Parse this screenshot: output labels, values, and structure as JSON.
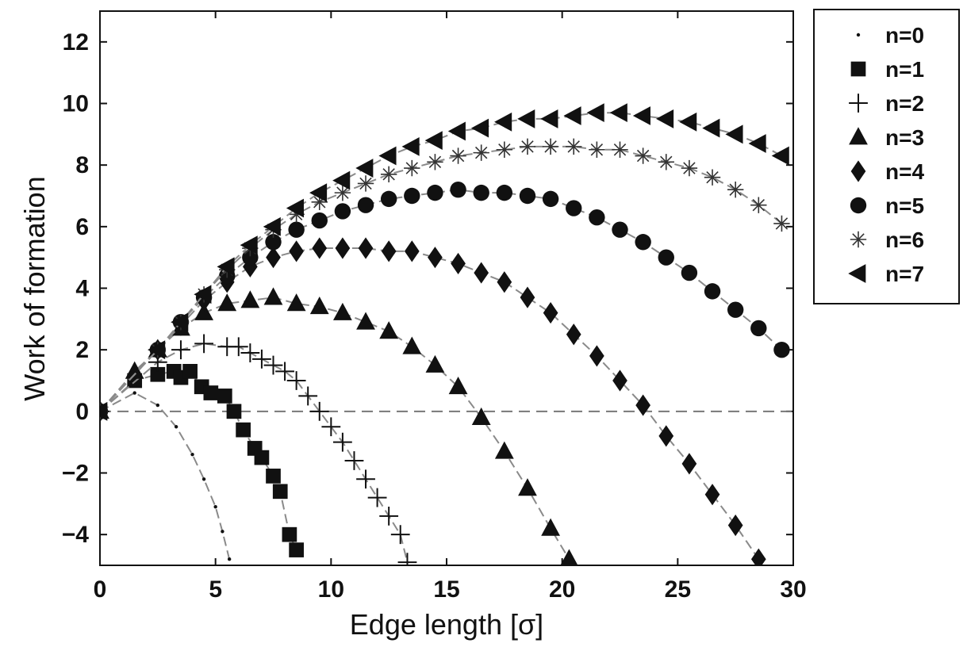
{
  "chart_data": {
    "type": "scatter",
    "title": "",
    "xlabel": "Edge length [σ]",
    "ylabel": "Work of formation",
    "xlim": [
      0,
      30
    ],
    "ylim": [
      -5,
      13
    ],
    "xticks": [
      "0",
      "5",
      "10",
      "15",
      "20",
      "25",
      "30"
    ],
    "yticks": [
      "−4",
      "−2",
      "0",
      "2",
      "4",
      "6",
      "8",
      "10",
      "12"
    ],
    "grid": false,
    "legend_position": "outside-top-right",
    "reference_line": {
      "y": 0,
      "style": "dashed"
    },
    "series": [
      {
        "name": "n=0",
        "marker": "dot",
        "x": [
          0.0,
          1.5,
          2.5,
          3.3,
          4.0,
          4.5,
          5.0,
          5.3,
          5.6
        ],
        "y": [
          0.0,
          0.6,
          0.2,
          -0.5,
          -1.4,
          -2.2,
          -3.1,
          -3.9,
          -4.8
        ]
      },
      {
        "name": "n=1",
        "marker": "square",
        "x": [
          0.0,
          1.5,
          2.5,
          3.2,
          3.5,
          3.9,
          4.4,
          4.8,
          5.4,
          5.8,
          6.2,
          6.7,
          7.0,
          7.5,
          7.8,
          8.2,
          8.5
        ],
        "y": [
          0.0,
          1.0,
          1.2,
          1.3,
          1.1,
          1.3,
          0.8,
          0.6,
          0.5,
          0.0,
          -0.6,
          -1.2,
          -1.5,
          -2.1,
          -2.6,
          -4.0,
          -4.5
        ]
      },
      {
        "name": "n=2",
        "marker": "plus",
        "x": [
          0.0,
          2.5,
          3.5,
          4.5,
          5.5,
          6.0,
          6.5,
          7.0,
          7.5,
          8.0,
          8.5,
          9.0,
          9.5,
          10.0,
          10.5,
          11.0,
          11.5,
          12.0,
          12.5,
          13.0,
          13.3
        ],
        "y": [
          0.0,
          1.6,
          2.0,
          2.2,
          2.1,
          2.1,
          1.9,
          1.7,
          1.5,
          1.3,
          1.0,
          0.5,
          0.0,
          -0.5,
          -1.0,
          -1.6,
          -2.2,
          -2.8,
          -3.4,
          -4.0,
          -4.9
        ]
      },
      {
        "name": "n=3",
        "marker": "triangle-up",
        "x": [
          0.0,
          1.5,
          2.5,
          3.5,
          4.5,
          5.5,
          6.5,
          7.5,
          8.5,
          9.5,
          10.5,
          11.5,
          12.5,
          13.5,
          14.5,
          15.5,
          16.5,
          17.5,
          18.5,
          19.5,
          20.3
        ],
        "y": [
          0.0,
          1.3,
          2.0,
          2.7,
          3.2,
          3.5,
          3.6,
          3.7,
          3.5,
          3.4,
          3.2,
          2.9,
          2.6,
          2.1,
          1.5,
          0.8,
          -0.2,
          -1.3,
          -2.5,
          -3.8,
          -4.8
        ]
      },
      {
        "name": "n=4",
        "marker": "diamond",
        "x": [
          0.0,
          2.5,
          3.5,
          4.5,
          5.5,
          6.5,
          7.5,
          8.5,
          9.5,
          10.5,
          11.5,
          12.5,
          13.5,
          14.5,
          15.5,
          16.5,
          17.5,
          18.5,
          19.5,
          20.5,
          21.5,
          22.5,
          23.5,
          24.5,
          25.5,
          26.5,
          27.5,
          28.5
        ],
        "y": [
          0.0,
          2.0,
          2.8,
          3.6,
          4.2,
          4.7,
          5.0,
          5.2,
          5.3,
          5.3,
          5.3,
          5.2,
          5.2,
          5.0,
          4.8,
          4.5,
          4.2,
          3.7,
          3.2,
          2.5,
          1.8,
          1.0,
          0.2,
          -0.8,
          -1.7,
          -2.7,
          -3.7,
          -4.8
        ]
      },
      {
        "name": "n=5",
        "marker": "circle",
        "x": [
          0.0,
          2.5,
          3.5,
          4.5,
          5.5,
          6.5,
          7.5,
          8.5,
          9.5,
          10.5,
          11.5,
          12.5,
          13.5,
          14.5,
          15.5,
          16.5,
          17.5,
          18.5,
          19.5,
          20.5,
          21.5,
          22.5,
          23.5,
          24.5,
          25.5,
          26.5,
          27.5,
          28.5,
          29.5
        ],
        "y": [
          0.0,
          2.0,
          2.9,
          3.7,
          4.4,
          5.0,
          5.5,
          5.9,
          6.2,
          6.5,
          6.7,
          6.9,
          7.0,
          7.1,
          7.2,
          7.1,
          7.1,
          7.0,
          6.9,
          6.6,
          6.3,
          5.9,
          5.5,
          5.0,
          4.5,
          3.9,
          3.3,
          2.7,
          2.0
        ]
      },
      {
        "name": "n=6",
        "marker": "asterisk",
        "x": [
          0.0,
          2.5,
          3.5,
          4.5,
          5.5,
          6.5,
          7.5,
          8.5,
          9.5,
          10.5,
          11.5,
          12.5,
          13.5,
          14.5,
          15.5,
          16.5,
          17.5,
          18.5,
          19.5,
          20.5,
          21.5,
          22.5,
          23.5,
          24.5,
          25.5,
          26.5,
          27.5,
          28.5,
          29.5
        ],
        "y": [
          0.0,
          2.0,
          2.9,
          3.8,
          4.6,
          5.3,
          5.9,
          6.4,
          6.8,
          7.1,
          7.4,
          7.7,
          7.9,
          8.1,
          8.3,
          8.4,
          8.5,
          8.6,
          8.6,
          8.6,
          8.5,
          8.5,
          8.3,
          8.1,
          7.9,
          7.6,
          7.2,
          6.7,
          6.1
        ]
      },
      {
        "name": "n=7",
        "marker": "triangle-left",
        "x": [
          0.0,
          2.5,
          3.5,
          4.5,
          5.5,
          6.5,
          7.5,
          8.5,
          9.5,
          10.5,
          11.5,
          12.5,
          13.5,
          14.5,
          15.5,
          16.5,
          17.5,
          18.5,
          19.5,
          20.5,
          21.5,
          22.5,
          23.5,
          24.5,
          25.5,
          26.5,
          27.5,
          28.5,
          29.5
        ],
        "y": [
          0.0,
          2.0,
          2.9,
          3.8,
          4.7,
          5.4,
          6.0,
          6.6,
          7.1,
          7.5,
          7.9,
          8.3,
          8.6,
          8.8,
          9.1,
          9.2,
          9.4,
          9.5,
          9.5,
          9.6,
          9.7,
          9.7,
          9.6,
          9.5,
          9.4,
          9.2,
          9.0,
          8.7,
          8.3
        ]
      }
    ]
  }
}
